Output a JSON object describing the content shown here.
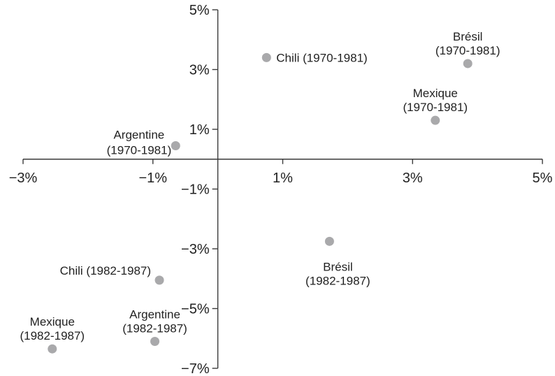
{
  "chart_data": {
    "type": "scatter",
    "title": "",
    "xlabel": "",
    "ylabel": "",
    "xlim": [
      -3,
      5
    ],
    "ylim": [
      -7,
      5
    ],
    "x_ticks": [
      {
        "value": -3,
        "label": "−3%"
      },
      {
        "value": -1,
        "label": "−1%"
      },
      {
        "value": 1,
        "label": "1%"
      },
      {
        "value": 3,
        "label": "3%"
      },
      {
        "value": 5,
        "label": "5%"
      }
    ],
    "y_ticks": [
      {
        "value": 5,
        "label": "5%"
      },
      {
        "value": 3,
        "label": "3%"
      },
      {
        "value": 1,
        "label": "1%"
      },
      {
        "value": -1,
        "label": "−1%"
      },
      {
        "value": -3,
        "label": "−3%"
      },
      {
        "value": -5,
        "label": "−5%"
      },
      {
        "value": -7,
        "label": "−7%"
      }
    ],
    "grid": false,
    "point_color": "#a9a9ab",
    "points": [
      {
        "label": "Chili (1970-1981)",
        "x": 0.75,
        "y": 3.4,
        "label_pos": "right"
      },
      {
        "label": "Brésil (1970-1981)",
        "x": 3.85,
        "y": 3.2,
        "label_pos": "above"
      },
      {
        "label": "Mexique (1970-1981)",
        "x": 3.35,
        "y": 1.3,
        "label_pos": "above"
      },
      {
        "label": "Argentine (1970-1981)",
        "x": -0.65,
        "y": 0.45,
        "label_pos": "left"
      },
      {
        "label": "Brésil (1982-1987)",
        "x": 1.72,
        "y": -2.75,
        "label_pos": "below"
      },
      {
        "label": "Chili (1982-1987)",
        "x": -0.9,
        "y": -4.05,
        "label_pos": "left"
      },
      {
        "label": "Argentine (1982-1987)",
        "x": -0.97,
        "y": -6.1,
        "label_pos": "above"
      },
      {
        "label": "Mexique (1982-1987)",
        "x": -2.55,
        "y": -6.35,
        "label_pos": "above"
      }
    ]
  }
}
